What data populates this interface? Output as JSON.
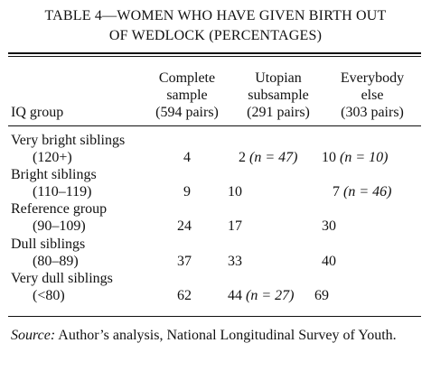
{
  "title_line1": "TABLE 4—WOMEN WHO HAVE GIVEN BIRTH OUT",
  "title_line2": "OF WEDLOCK (PERCENTAGES)",
  "columns": {
    "row_header": "IQ group",
    "c1": [
      "Complete",
      "sample",
      "(594 pairs)"
    ],
    "c2": [
      "Utopian",
      "subsample",
      "(291 pairs)"
    ],
    "c3": [
      "Everybody",
      "else",
      "(303 pairs)"
    ]
  },
  "rows": [
    {
      "label": "Very bright siblings",
      "range": "(120+)",
      "c1": "4",
      "c2": "2",
      "c2_n": "(n = 47)",
      "c3": "10",
      "c3_n": "(n = 10)"
    },
    {
      "label": "Bright siblings",
      "range": "(110–119)",
      "c1": "9",
      "c2": "10",
      "c2_n": "",
      "c3": "7",
      "c3_n": "(n = 46)"
    },
    {
      "label": "Reference group",
      "range": "(90–109)",
      "c1": "24",
      "c2": "17",
      "c2_n": "",
      "c3": "30",
      "c3_n": ""
    },
    {
      "label": "Dull siblings",
      "range": "(80–89)",
      "c1": "37",
      "c2": "33",
      "c2_n": "",
      "c3": "40",
      "c3_n": ""
    },
    {
      "label": "Very dull siblings",
      "range": "(<80)",
      "c1": "62",
      "c2": "44",
      "c2_n": "(n = 27)",
      "c3": "69",
      "c3_n": ""
    }
  ],
  "source_label": "Source:",
  "source_text": "Author’s analysis, National Longitudinal Survey of Youth."
}
